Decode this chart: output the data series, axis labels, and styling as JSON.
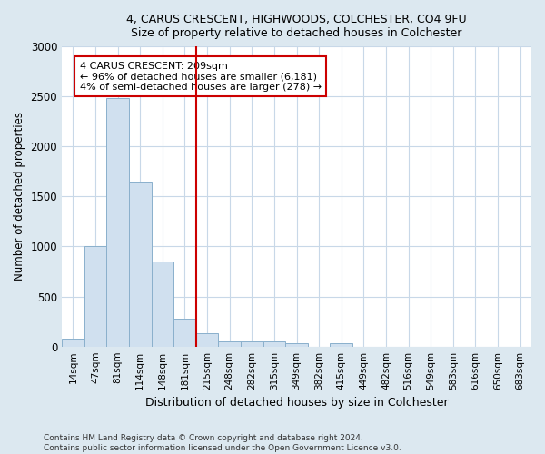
{
  "title1": "4, CARUS CRESCENT, HIGHWOODS, COLCHESTER, CO4 9FU",
  "title2": "Size of property relative to detached houses in Colchester",
  "xlabel": "Distribution of detached houses by size in Colchester",
  "ylabel": "Number of detached properties",
  "footnote1": "Contains HM Land Registry data © Crown copyright and database right 2024.",
  "footnote2": "Contains public sector information licensed under the Open Government Licence v3.0.",
  "bin_labels": [
    "14sqm",
    "47sqm",
    "81sqm",
    "114sqm",
    "148sqm",
    "181sqm",
    "215sqm",
    "248sqm",
    "282sqm",
    "315sqm",
    "349sqm",
    "382sqm",
    "415sqm",
    "449sqm",
    "482sqm",
    "516sqm",
    "549sqm",
    "583sqm",
    "616sqm",
    "650sqm",
    "683sqm"
  ],
  "bar_values": [
    75,
    1000,
    2480,
    1650,
    850,
    280,
    135,
    55,
    50,
    50,
    30,
    0,
    30,
    0,
    0,
    0,
    0,
    0,
    0,
    0,
    0
  ],
  "bar_color": "#d0e0ef",
  "bar_edge_color": "#8ab0cc",
  "vline_x": 6.0,
  "vline_color": "#cc0000",
  "annotation_text": "4 CARUS CRESCENT: 209sqm\n← 96% of detached houses are smaller (6,181)\n4% of semi-detached houses are larger (278) →",
  "annotation_box_color": "#ffffff",
  "annotation_box_edge_color": "#cc0000",
  "ylim": [
    0,
    3000
  ],
  "yticks": [
    0,
    500,
    1000,
    1500,
    2000,
    2500,
    3000
  ],
  "bg_color": "#dce8f0",
  "plot_bg_color": "#ffffff",
  "grid_color": "#c8d8e8"
}
